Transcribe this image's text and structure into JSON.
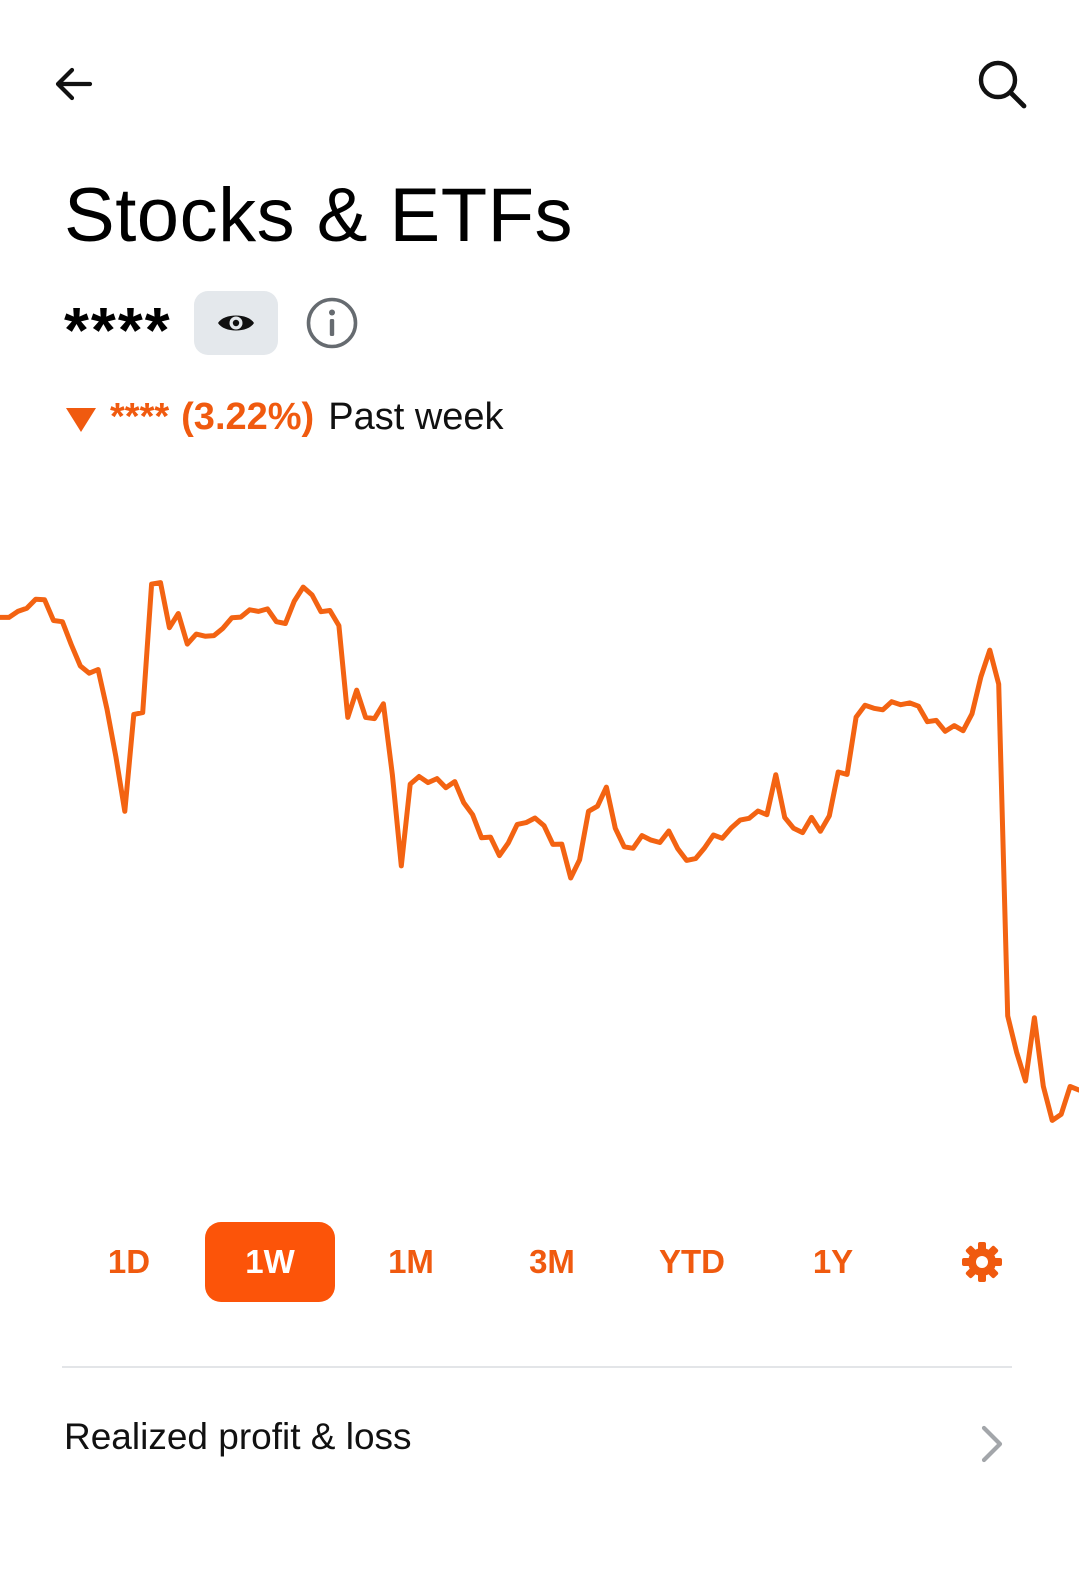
{
  "header": {
    "title": "Stocks & ETFs",
    "back_icon": "arrow-left-icon",
    "search_icon": "search-icon"
  },
  "balance": {
    "masked_value": "****",
    "visibility_icon": "eye-icon",
    "info_icon": "info-icon"
  },
  "change": {
    "direction": "down",
    "value": "****",
    "percent": "(3.22%)",
    "period": "Past week",
    "color": "#f05a0f"
  },
  "chart_data": {
    "type": "line",
    "color": "#f36312",
    "grid": false,
    "axes_visible": false,
    "series": [
      {
        "values": [
          0.86,
          0.86,
          0.88,
          0.89,
          0.92,
          0.918,
          0.85,
          0.846,
          0.77,
          0.7,
          0.676,
          0.688,
          0.557,
          0.4,
          0.22,
          0.54,
          0.546,
          0.97,
          0.975,
          0.826,
          0.873,
          0.772,
          0.805,
          0.798,
          0.8,
          0.824,
          0.859,
          0.861,
          0.885,
          0.88,
          0.888,
          0.846,
          0.84,
          0.914,
          0.96,
          0.934,
          0.879,
          0.883,
          0.833,
          0.53,
          0.62,
          0.53,
          0.526,
          0.575,
          0.34,
          0.04,
          0.31,
          0.335,
          0.315,
          0.328,
          0.298,
          0.318,
          0.249,
          0.209,
          0.133,
          0.135,
          0.074,
          0.116,
          0.177,
          0.183,
          0.198,
          0.173,
          0.111,
          0.112,
          0.0,
          0.06,
          0.22,
          0.237,
          0.3,
          0.164,
          0.103,
          0.098,
          0.14,
          0.125,
          0.117,
          0.155,
          0.097,
          0.058,
          0.064,
          0.099,
          0.142,
          0.131,
          0.165,
          0.191,
          0.197,
          0.221,
          0.209,
          0.341,
          0.2,
          0.164,
          0.15,
          0.2,
          0.154,
          0.205,
          0.35,
          0.342,
          0.531,
          0.57,
          0.56,
          0.555,
          0.582,
          0.572,
          0.578,
          0.567,
          0.516,
          0.52,
          0.484,
          0.503,
          0.486,
          0.542,
          0.664,
          0.752,
          0.64,
          -0.455,
          -0.575,
          -0.67,
          -0.461,
          -0.687,
          -0.8,
          -0.78,
          -0.688,
          -0.7
        ]
      }
    ]
  },
  "ranges": {
    "items": [
      "1D",
      "1W",
      "1M",
      "3M",
      "YTD",
      "1Y"
    ],
    "selected": "1W",
    "settings_icon": "gear-icon",
    "accent": "#fc5409"
  },
  "pnl": {
    "label": "Realized profit & loss",
    "chevron_icon": "chevron-right-icon"
  }
}
